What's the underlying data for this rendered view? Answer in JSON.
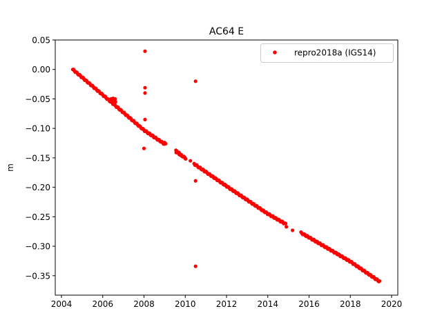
{
  "chart_data": {
    "type": "scatter",
    "title": "AC64 E",
    "xlabel": "",
    "ylabel": "m",
    "xlim": [
      2003.7,
      2020.3
    ],
    "ylim": [
      -0.383,
      0.05
    ],
    "x_ticks": [
      2004,
      2006,
      2008,
      2010,
      2012,
      2014,
      2016,
      2018,
      2020
    ],
    "x_tick_labels": [
      "2004",
      "2006",
      "2008",
      "2010",
      "2012",
      "2014",
      "2016",
      "2018",
      "2020"
    ],
    "y_ticks": [
      0.05,
      0.0,
      -0.05,
      -0.1,
      -0.15,
      -0.2,
      -0.25,
      -0.3,
      -0.35
    ],
    "y_tick_labels": [
      "0.05",
      "0.00",
      "−0.05",
      "−0.10",
      "−0.15",
      "−0.20",
      "−0.25",
      "−0.30",
      "−0.35"
    ],
    "grid": false,
    "legend_position": "top-right",
    "colors": {
      "series": "#ff0000",
      "axes": "#000000",
      "background": "#ffffff"
    },
    "series": [
      {
        "name": "repro2018a (IGS14)",
        "marker": "circle",
        "trend": {
          "x_start": 2004.55,
          "x_end": 2019.42,
          "points": 360,
          "anchors": [
            [
              2004.55,
              0.0
            ],
            [
              2006.5,
              -0.058
            ],
            [
              2008.0,
              -0.103
            ],
            [
              2010.5,
              -0.162
            ],
            [
              2012.0,
              -0.198
            ],
            [
              2014.0,
              -0.245
            ],
            [
              2016.0,
              -0.285
            ],
            [
              2018.0,
              -0.326
            ],
            [
              2019.42,
              -0.36
            ]
          ],
          "gaps": [
            [
              2009.05,
              2009.55
            ],
            [
              2010.05,
              2010.4
            ],
            [
              2014.9,
              2015.6
            ]
          ]
        },
        "extra_points": [
          {
            "x": 2006.4,
            "y": -0.05
          },
          {
            "x": 2006.5,
            "y": -0.049
          },
          {
            "x": 2006.55,
            "y": -0.052
          },
          {
            "x": 2006.6,
            "y": -0.05
          },
          {
            "x": 2006.62,
            "y": -0.055
          },
          {
            "x": 2008.05,
            "y": 0.031
          },
          {
            "x": 2008.05,
            "y": -0.031
          },
          {
            "x": 2008.05,
            "y": -0.04
          },
          {
            "x": 2008.05,
            "y": -0.085
          },
          {
            "x": 2008.0,
            "y": -0.134
          },
          {
            "x": 2009.0,
            "y": -0.124
          },
          {
            "x": 2009.05,
            "y": -0.126
          },
          {
            "x": 2009.55,
            "y": -0.137
          },
          {
            "x": 2009.6,
            "y": -0.139
          },
          {
            "x": 2009.7,
            "y": -0.141
          },
          {
            "x": 2009.8,
            "y": -0.146
          },
          {
            "x": 2009.9,
            "y": -0.148
          },
          {
            "x": 2010.0,
            "y": -0.151
          },
          {
            "x": 2010.25,
            "y": -0.155
          },
          {
            "x": 2010.5,
            "y": -0.02
          },
          {
            "x": 2010.5,
            "y": -0.189
          },
          {
            "x": 2010.5,
            "y": -0.334
          },
          {
            "x": 2015.2,
            "y": -0.273
          },
          {
            "x": 2014.9,
            "y": -0.267
          }
        ]
      }
    ]
  }
}
